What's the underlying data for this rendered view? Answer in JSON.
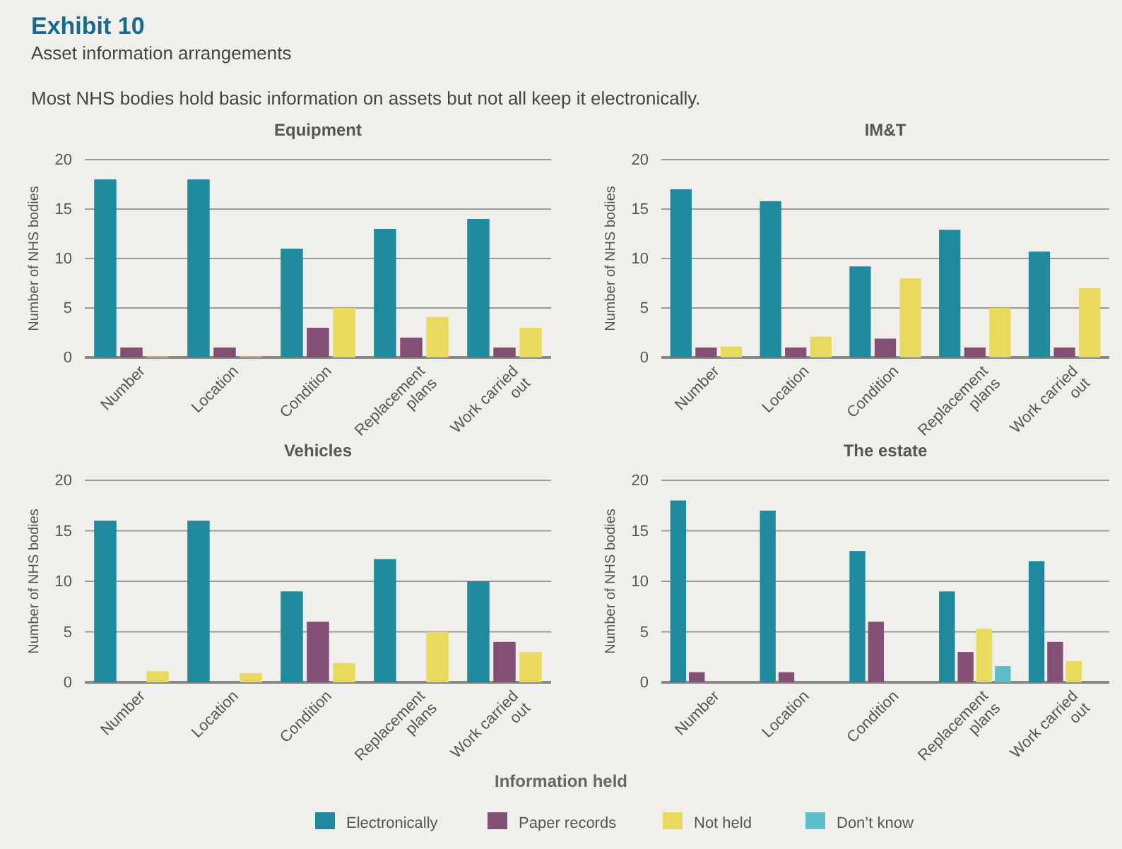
{
  "chart_data": [
    {
      "type": "bar",
      "title": "Equipment",
      "annotations": [
        "Exhibit 10",
        "Asset information arrangements",
        "Most NHS bodies hold basic information on assets but not all keep it electronically."
      ],
      "ylabel": "Number of NHS bodies",
      "categories": [
        "Number",
        "Location",
        "Condition",
        "Replacement plans",
        "Work carried out"
      ],
      "ylim": [
        0,
        20
      ],
      "yticks": [
        0,
        5,
        10,
        15,
        20
      ],
      "grid": "y",
      "series": [
        {
          "color": "#1f8a9e",
          "values": [
            18,
            18,
            11,
            13,
            14
          ]
        },
        {
          "color": "#844f74",
          "values": [
            1,
            1,
            3,
            2,
            1
          ]
        },
        {
          "color": "#e8da5c",
          "values": [
            0.1,
            0.1,
            5,
            4.1,
            3
          ]
        }
      ]
    },
    {
      "type": "bar",
      "title": "IM&T",
      "ylabel": "Number of NHS bodies",
      "categories": [
        "Number",
        "Location",
        "Condition",
        "Replacement plans",
        "Work carried out"
      ],
      "ylim": [
        0,
        20
      ],
      "yticks": [
        0,
        5,
        10,
        15,
        20
      ],
      "grid": "y",
      "series": [
        {
          "color": "#1f8a9e",
          "values": [
            17,
            15.8,
            9.2,
            12.9,
            10.7
          ]
        },
        {
          "color": "#844f74",
          "values": [
            1,
            1,
            1.9,
            1,
            1
          ]
        },
        {
          "color": "#e8da5c",
          "values": [
            1.1,
            2.1,
            8,
            5,
            7
          ]
        }
      ]
    },
    {
      "type": "bar",
      "title": "Vehicles",
      "ylabel": "Number of NHS bodies",
      "categories": [
        "Number",
        "Location",
        "Condition",
        "Replacement plans",
        "Work carried out"
      ],
      "ylim": [
        0,
        20
      ],
      "yticks": [
        0,
        5,
        10,
        15,
        20
      ],
      "grid": "y",
      "series": [
        {
          "color": "#1f8a9e",
          "values": [
            16,
            16,
            9,
            12.2,
            10
          ]
        },
        {
          "color": "#844f74",
          "values": [
            null,
            null,
            6,
            null,
            4
          ]
        },
        {
          "color": "#e8da5c",
          "values": [
            1.1,
            0.9,
            1.9,
            5,
            3
          ]
        }
      ]
    },
    {
      "type": "bar",
      "title": "The estate",
      "ylabel": "Number of NHS bodies",
      "categories": [
        "Number",
        "Location",
        "Condition",
        "Replacement plans",
        "Work carried out"
      ],
      "ylim": [
        0,
        20
      ],
      "yticks": [
        0,
        5,
        10,
        15,
        20
      ],
      "grid": "y",
      "legend": "bottom",
      "legend_title": "Information held",
      "series": [
        {
          "name": "Electronically",
          "color": "#1f8a9e",
          "values": [
            18,
            17,
            13,
            9,
            12
          ]
        },
        {
          "name": "Paper records",
          "color": "#844f74",
          "values": [
            1,
            1,
            6,
            3,
            4
          ]
        },
        {
          "name": "Not held",
          "color": "#e8da5c",
          "values": [
            null,
            null,
            null,
            5.3,
            2.1
          ]
        },
        {
          "name": "Don’t know",
          "color": "#5bbfcb",
          "values": [
            null,
            null,
            null,
            1.6,
            null
          ]
        }
      ]
    }
  ]
}
